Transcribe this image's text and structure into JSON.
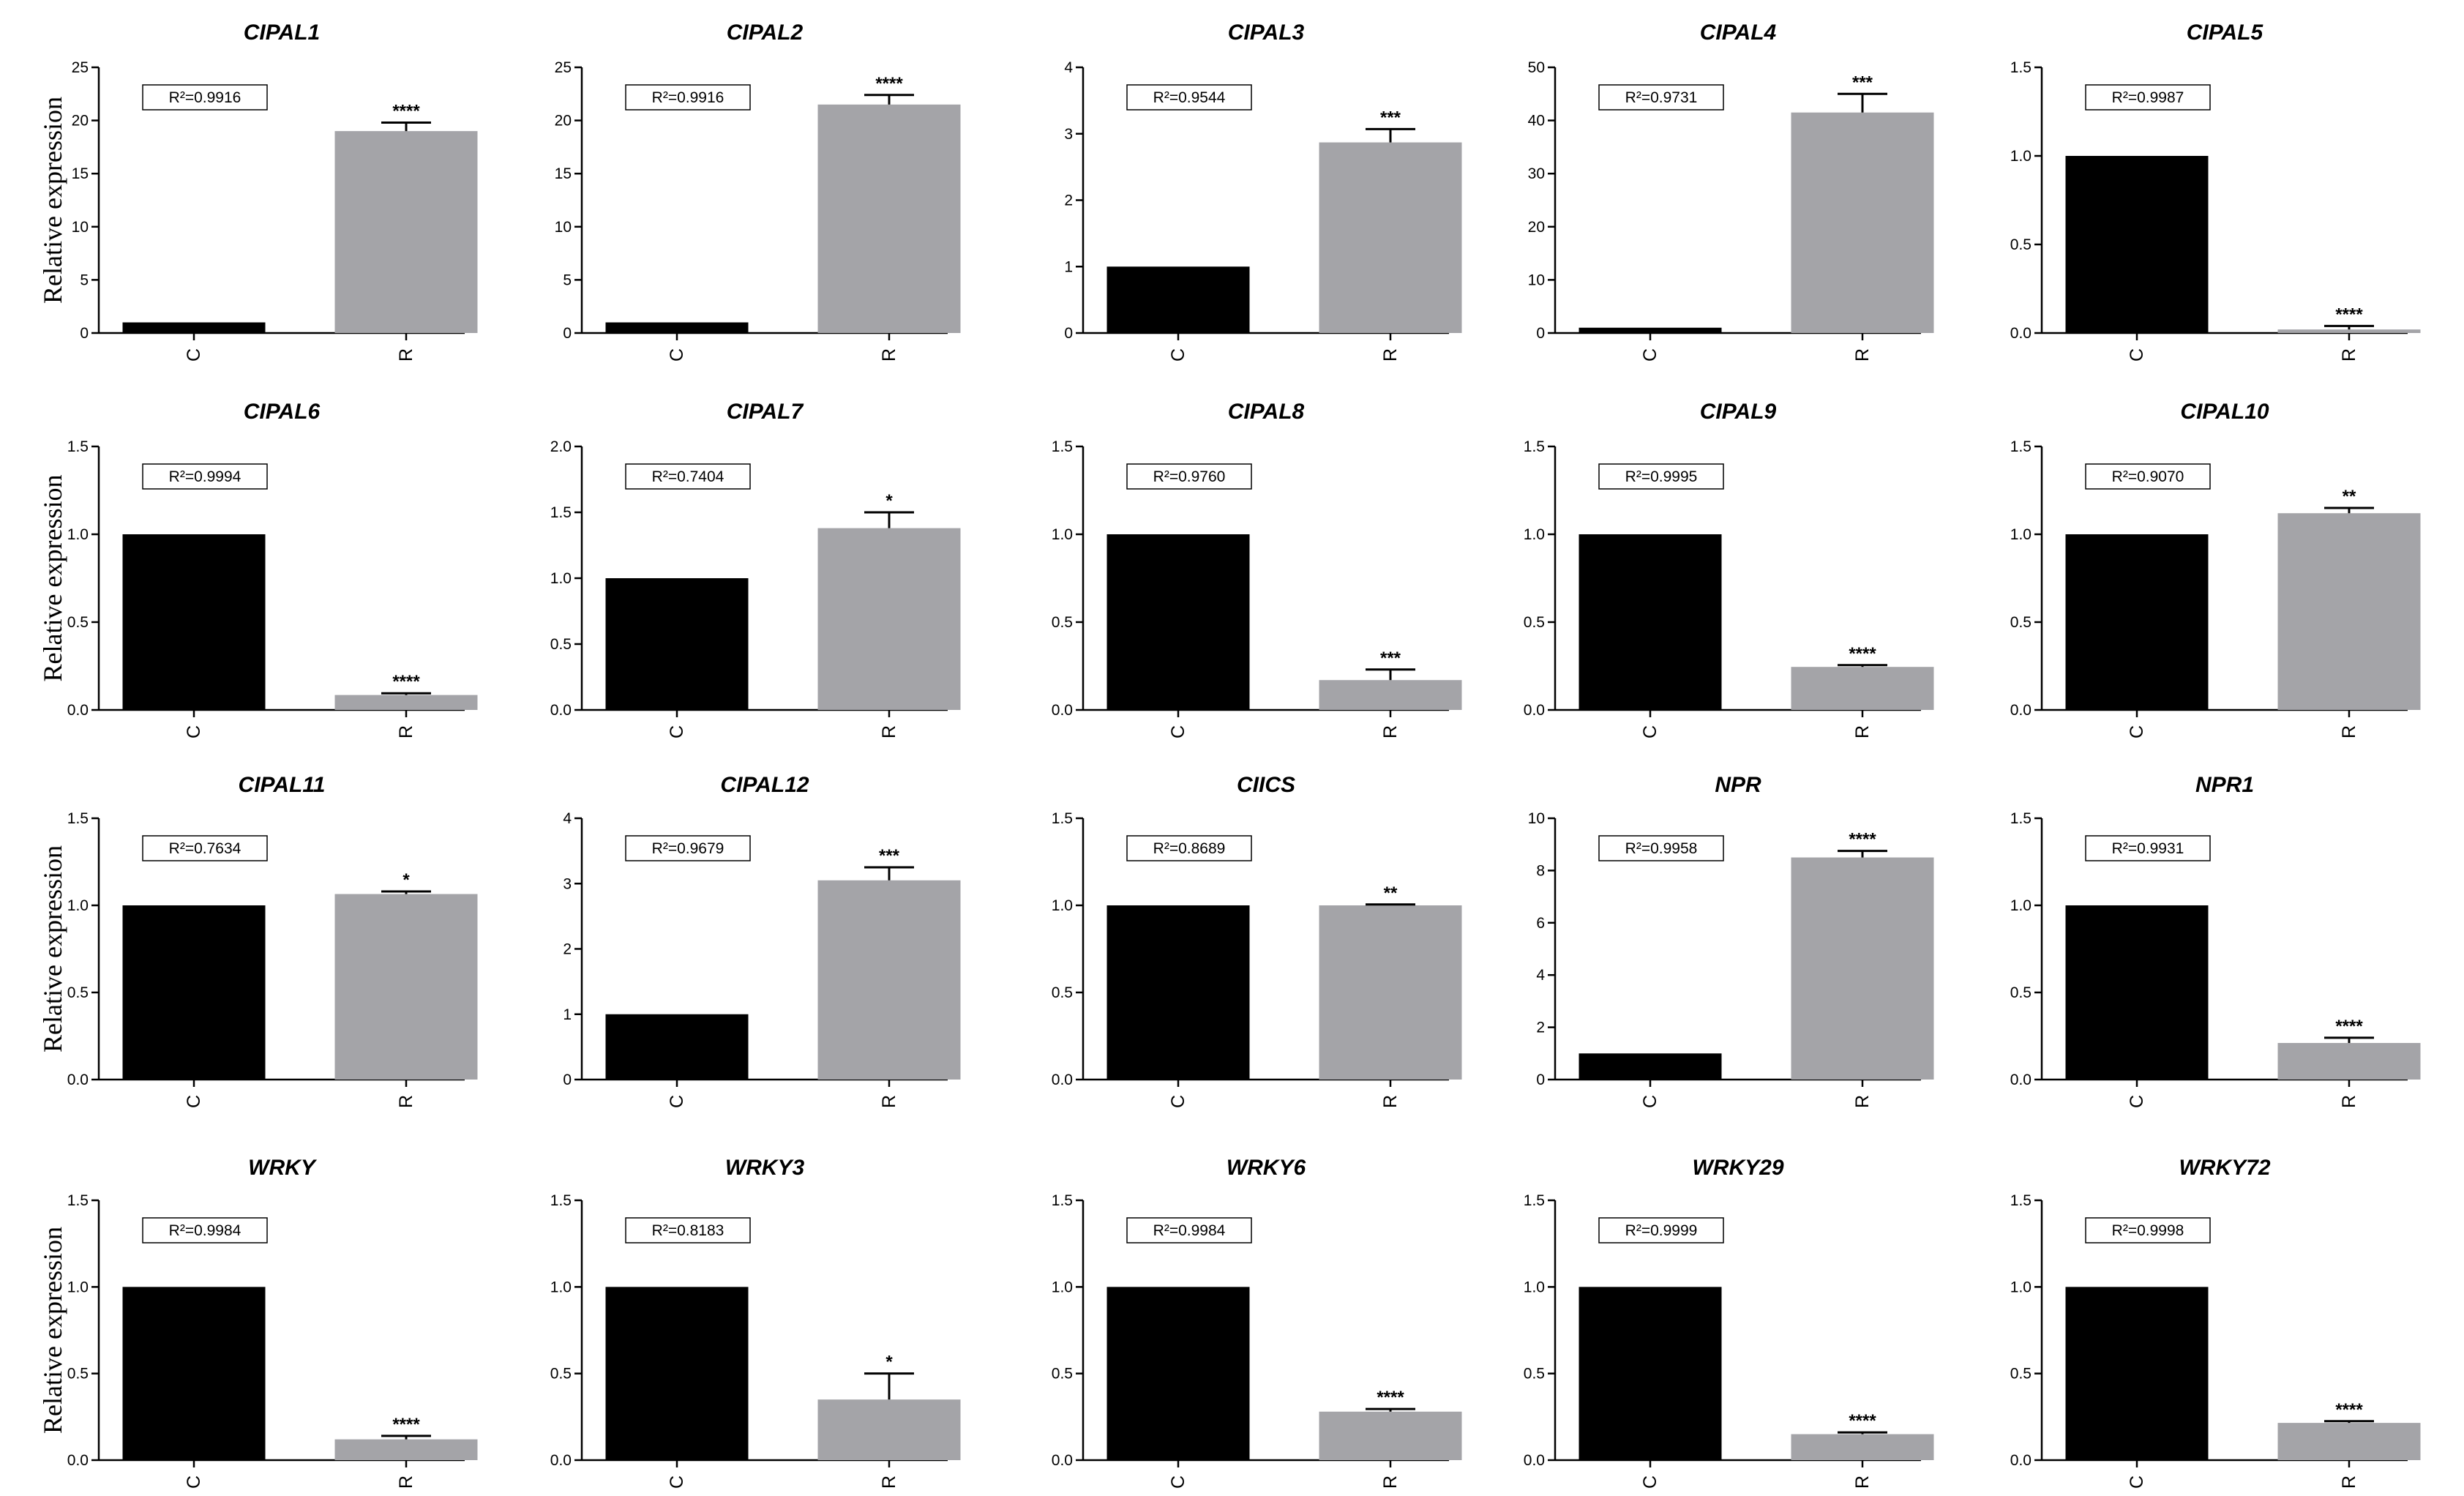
{
  "y_axis_label": "Relative expression",
  "colors": {
    "control": "#000000",
    "treated": "#a4a4a8",
    "axis": "#000000"
  },
  "chart_data": [
    {
      "type": "bar",
      "title": "CIPAL1",
      "categories": [
        "C",
        "R"
      ],
      "values": [
        1,
        19.0
      ],
      "errors": [
        0,
        0.8
      ],
      "significance": [
        "",
        "****"
      ],
      "r2": "R²=0.9916",
      "ylim": [
        0,
        25
      ],
      "yticks": [
        0,
        5,
        10,
        15,
        20,
        25
      ],
      "ticklabels": [
        "0",
        "5",
        "10",
        "15",
        "20",
        "25"
      ]
    },
    {
      "type": "bar",
      "title": "CIPAL2",
      "categories": [
        "C",
        "R"
      ],
      "values": [
        1,
        21.5
      ],
      "errors": [
        0,
        0.9
      ],
      "significance": [
        "",
        "****"
      ],
      "r2": "R²=0.9916",
      "ylim": [
        0,
        25
      ],
      "yticks": [
        0,
        5,
        10,
        15,
        20,
        25
      ],
      "ticklabels": [
        "0",
        "5",
        "10",
        "15",
        "20",
        "25"
      ]
    },
    {
      "type": "bar",
      "title": "CIPAL3",
      "categories": [
        "C",
        "R"
      ],
      "values": [
        1,
        2.87
      ],
      "errors": [
        0,
        0.2
      ],
      "significance": [
        "",
        "***"
      ],
      "r2": "R²=0.9544",
      "ylim": [
        0,
        4
      ],
      "yticks": [
        0,
        1,
        2,
        3,
        4
      ],
      "ticklabels": [
        "0",
        "1",
        "2",
        "3",
        "4"
      ]
    },
    {
      "type": "bar",
      "title": "CIPAL4",
      "categories": [
        "C",
        "R"
      ],
      "values": [
        1,
        41.5
      ],
      "errors": [
        0,
        3.5
      ],
      "significance": [
        "",
        "***"
      ],
      "r2": "R²=0.9731",
      "ylim": [
        0,
        50
      ],
      "yticks": [
        0,
        10,
        20,
        30,
        40,
        50
      ],
      "ticklabels": [
        "0",
        "10",
        "20",
        "30",
        "40",
        "50"
      ]
    },
    {
      "type": "bar",
      "title": "CIPAL5",
      "categories": [
        "C",
        "R"
      ],
      "values": [
        1,
        0.02
      ],
      "errors": [
        0,
        0.02
      ],
      "significance": [
        "",
        "****"
      ],
      "r2": "R²=0.9987",
      "ylim": [
        0,
        1.5
      ],
      "yticks": [
        0,
        0.5,
        1.0,
        1.5
      ],
      "ticklabels": [
        "0.0",
        "0.5",
        "1.0",
        "1.5"
      ]
    },
    {
      "type": "bar",
      "title": "CIPAL6",
      "categories": [
        "C",
        "R"
      ],
      "values": [
        1,
        0.085
      ],
      "errors": [
        0,
        0.01
      ],
      "significance": [
        "",
        "****"
      ],
      "r2": "R²=0.9994",
      "ylim": [
        0,
        1.5
      ],
      "yticks": [
        0,
        0.5,
        1.0,
        1.5
      ],
      "ticklabels": [
        "0.0",
        "0.5",
        "1.0",
        "1.5"
      ]
    },
    {
      "type": "bar",
      "title": "CIPAL7",
      "categories": [
        "C",
        "R"
      ],
      "values": [
        1,
        1.38
      ],
      "errors": [
        0,
        0.12
      ],
      "significance": [
        "",
        "*"
      ],
      "r2": "R²=0.7404",
      "ylim": [
        0,
        2.0
      ],
      "yticks": [
        0,
        0.5,
        1.0,
        1.5,
        2.0
      ],
      "ticklabels": [
        "0.0",
        "0.5",
        "1.0",
        "1.5",
        "2.0"
      ]
    },
    {
      "type": "bar",
      "title": "CIPAL8",
      "categories": [
        "C",
        "R"
      ],
      "values": [
        1,
        0.17
      ],
      "errors": [
        0,
        0.06
      ],
      "significance": [
        "",
        "***"
      ],
      "r2": "R²=0.9760",
      "ylim": [
        0,
        1.5
      ],
      "yticks": [
        0,
        0.5,
        1.0,
        1.5
      ],
      "ticklabels": [
        "0.0",
        "0.5",
        "1.0",
        "1.5"
      ]
    },
    {
      "type": "bar",
      "title": "CIPAL9",
      "categories": [
        "C",
        "R"
      ],
      "values": [
        1,
        0.245
      ],
      "errors": [
        0,
        0.01
      ],
      "significance": [
        "",
        "****"
      ],
      "r2": "R²=0.9995",
      "ylim": [
        0,
        1.5
      ],
      "yticks": [
        0,
        0.5,
        1.0,
        1.5
      ],
      "ticklabels": [
        "0.0",
        "0.5",
        "1.0",
        "1.5"
      ]
    },
    {
      "type": "bar",
      "title": "CIPAL10",
      "categories": [
        "C",
        "R"
      ],
      "values": [
        1,
        1.12
      ],
      "errors": [
        0,
        0.03
      ],
      "significance": [
        "",
        "**"
      ],
      "r2": "R²=0.9070",
      "ylim": [
        0,
        1.5
      ],
      "yticks": [
        0,
        0.5,
        1.0,
        1.5
      ],
      "ticklabels": [
        "0.0",
        "0.5",
        "1.0",
        "1.5"
      ]
    },
    {
      "type": "bar",
      "title": "CIPAL11",
      "categories": [
        "C",
        "R"
      ],
      "values": [
        1,
        1.065
      ],
      "errors": [
        0,
        0.015
      ],
      "significance": [
        "",
        "*"
      ],
      "r2": "R²=0.7634",
      "ylim": [
        0,
        1.5
      ],
      "yticks": [
        0,
        0.5,
        1.0,
        1.5
      ],
      "ticklabels": [
        "0.0",
        "0.5",
        "1.0",
        "1.5"
      ]
    },
    {
      "type": "bar",
      "title": "CIPAL12",
      "categories": [
        "C",
        "R"
      ],
      "values": [
        1,
        3.05
      ],
      "errors": [
        0,
        0.2
      ],
      "significance": [
        "",
        "***"
      ],
      "r2": "R²=0.9679",
      "ylim": [
        0,
        4
      ],
      "yticks": [
        0,
        1,
        2,
        3,
        4
      ],
      "ticklabels": [
        "0",
        "1",
        "2",
        "3",
        "4"
      ]
    },
    {
      "type": "bar",
      "title": "CIICS",
      "categories": [
        "C",
        "R"
      ],
      "values": [
        1,
        1.0
      ],
      "errors": [
        0,
        0.005
      ],
      "significance": [
        "",
        "**"
      ],
      "r2": "R²=0.8689",
      "ylim": [
        0,
        1.5
      ],
      "yticks": [
        0,
        0.5,
        1.0,
        1.5
      ],
      "ticklabels": [
        "0.0",
        "0.5",
        "1.0",
        "1.5"
      ]
    },
    {
      "type": "bar",
      "title": "NPR",
      "categories": [
        "C",
        "R"
      ],
      "values": [
        1,
        8.5
      ],
      "errors": [
        0,
        0.25
      ],
      "significance": [
        "",
        "****"
      ],
      "r2": "R²=0.9958",
      "ylim": [
        0,
        10
      ],
      "yticks": [
        0,
        2,
        4,
        6,
        8,
        10
      ],
      "ticklabels": [
        "0",
        "2",
        "4",
        "6",
        "8",
        "10"
      ]
    },
    {
      "type": "bar",
      "title": "NPR1",
      "categories": [
        "C",
        "R"
      ],
      "values": [
        1,
        0.21
      ],
      "errors": [
        0,
        0.03
      ],
      "significance": [
        "",
        "****"
      ],
      "r2": "R²=0.9931",
      "ylim": [
        0,
        1.5
      ],
      "yticks": [
        0,
        0.5,
        1.0,
        1.5
      ],
      "ticklabels": [
        "0.0",
        "0.5",
        "1.0",
        "1.5"
      ]
    },
    {
      "type": "bar",
      "title": "WRKY",
      "categories": [
        "C",
        "R"
      ],
      "values": [
        1,
        0.12
      ],
      "errors": [
        0,
        0.02
      ],
      "significance": [
        "",
        "****"
      ],
      "r2": "R²=0.9984",
      "ylim": [
        0,
        1.5
      ],
      "yticks": [
        0,
        0.5,
        1.0,
        1.5
      ],
      "ticklabels": [
        "0.0",
        "0.5",
        "1.0",
        "1.5"
      ]
    },
    {
      "type": "bar",
      "title": "WRKY3",
      "categories": [
        "C",
        "R"
      ],
      "values": [
        1,
        0.35
      ],
      "errors": [
        0,
        0.15
      ],
      "significance": [
        "",
        "*"
      ],
      "r2": "R²=0.8183",
      "ylim": [
        0,
        1.5
      ],
      "yticks": [
        0,
        0.5,
        1.0,
        1.5
      ],
      "ticklabels": [
        "0.0",
        "0.5",
        "1.0",
        "1.5"
      ]
    },
    {
      "type": "bar",
      "title": "WRKY6",
      "categories": [
        "C",
        "R"
      ],
      "values": [
        1,
        0.28
      ],
      "errors": [
        0,
        0.015
      ],
      "significance": [
        "",
        "****"
      ],
      "r2": "R²=0.9984",
      "ylim": [
        0,
        1.5
      ],
      "yticks": [
        0,
        0.5,
        1.0,
        1.5
      ],
      "ticklabels": [
        "0.0",
        "0.5",
        "1.0",
        "1.5"
      ]
    },
    {
      "type": "bar",
      "title": "WRKY29",
      "categories": [
        "C",
        "R"
      ],
      "values": [
        1,
        0.15
      ],
      "errors": [
        0,
        0.01
      ],
      "significance": [
        "",
        "****"
      ],
      "r2": "R²=0.9999",
      "ylim": [
        0,
        1.5
      ],
      "yticks": [
        0,
        0.5,
        1.0,
        1.5
      ],
      "ticklabels": [
        "0.0",
        "0.5",
        "1.0",
        "1.5"
      ]
    },
    {
      "type": "bar",
      "title": "WRKY72",
      "categories": [
        "C",
        "R"
      ],
      "values": [
        1,
        0.215
      ],
      "errors": [
        0,
        0.01
      ],
      "significance": [
        "",
        "****"
      ],
      "r2": "R²=0.9998",
      "ylim": [
        0,
        1.5
      ],
      "yticks": [
        0,
        0.5,
        1.0,
        1.5
      ],
      "ticklabels": [
        "0.0",
        "0.5",
        "1.0",
        "1.5"
      ]
    }
  ]
}
